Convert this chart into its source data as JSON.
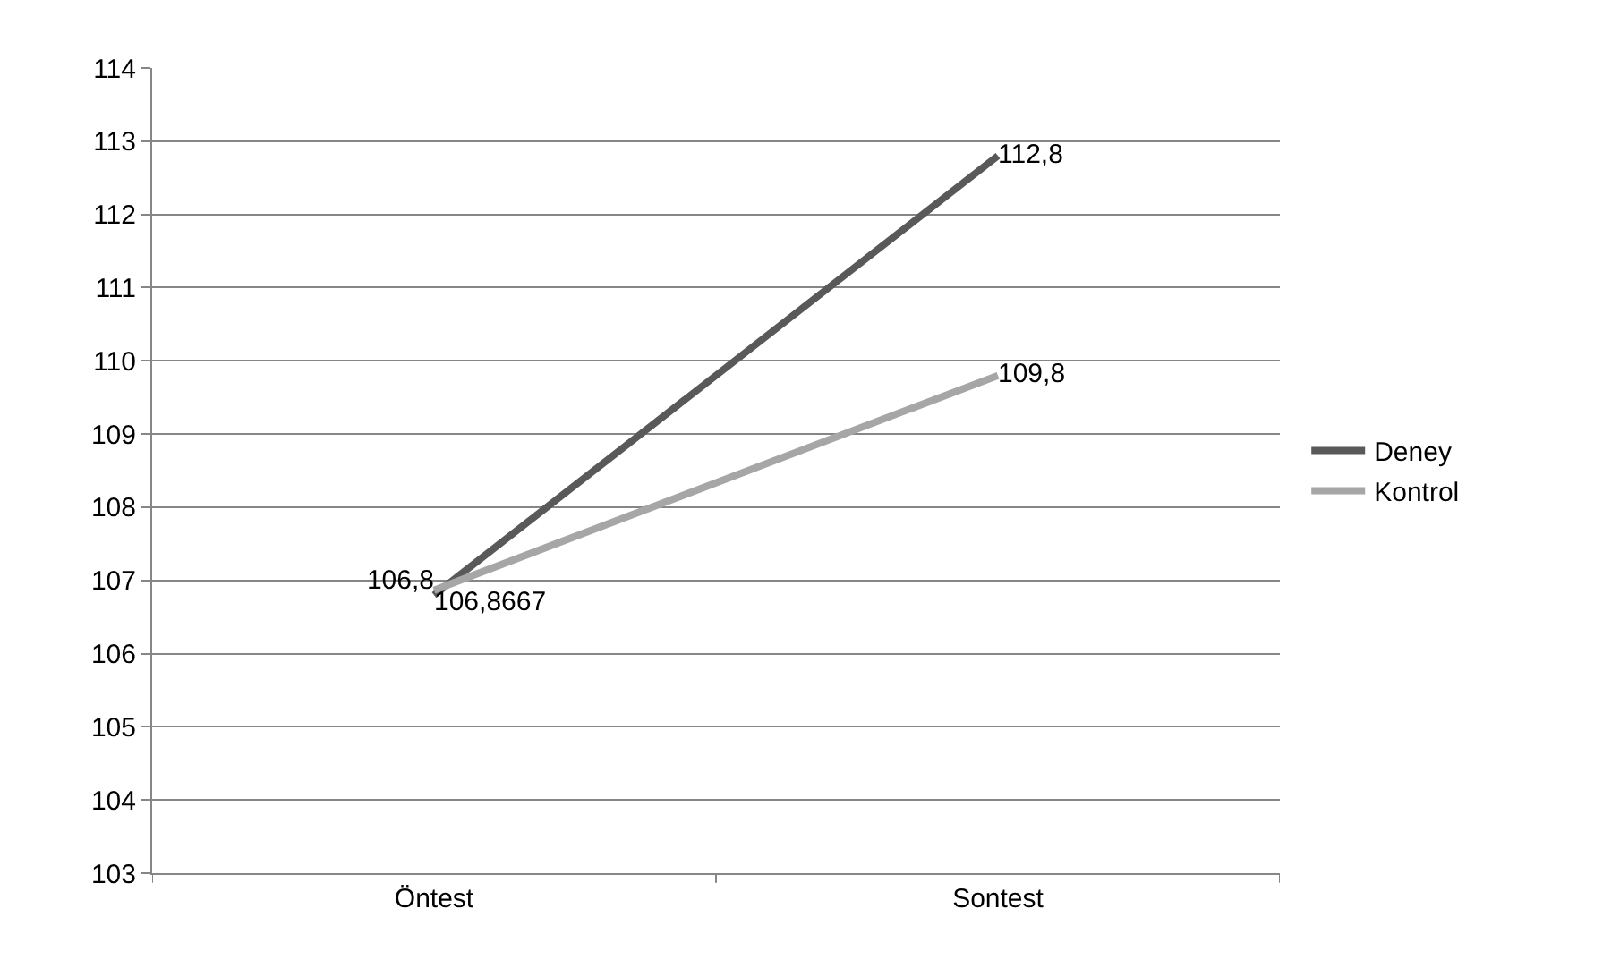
{
  "chart_data": {
    "type": "line",
    "categories": [
      "Öntest",
      "Sontest"
    ],
    "series": [
      {
        "name": "Deney",
        "color": "#595959",
        "values": [
          106.8,
          112.8
        ],
        "value_labels": [
          "106,8",
          "112,8"
        ]
      },
      {
        "name": "Kontrol",
        "color": "#a6a6a6",
        "values": [
          106.8667,
          109.8
        ],
        "value_labels": [
          "106,8667",
          "109,8"
        ]
      }
    ],
    "ylim": [
      103,
      114
    ],
    "yticks": [
      103,
      104,
      105,
      106,
      107,
      108,
      109,
      110,
      111,
      112,
      113,
      114
    ],
    "grid": "y",
    "legend": "right",
    "marker": "none",
    "line_style": "solid"
  }
}
